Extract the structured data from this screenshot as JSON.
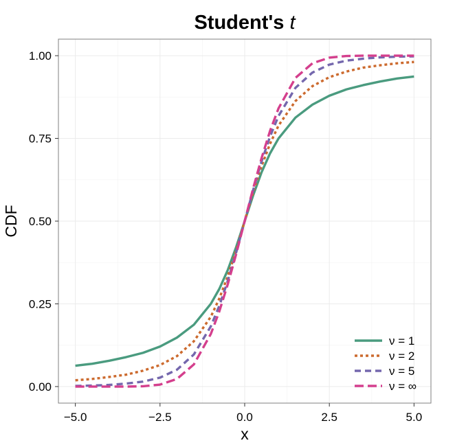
{
  "chart_data": {
    "type": "line",
    "title": "Student's",
    "title_italic": "t",
    "xlabel": "x",
    "ylabel": "CDF",
    "xlim": [
      -5.5,
      5.5
    ],
    "ylim": [
      -0.05,
      1.05
    ],
    "x_ticks": [
      -5.0,
      -2.5,
      0.0,
      2.5,
      5.0
    ],
    "x_tick_labels": [
      "−5.0",
      "−2.5",
      "0.0",
      "2.5",
      "5.0"
    ],
    "y_ticks": [
      0.0,
      0.25,
      0.5,
      0.75,
      1.0
    ],
    "y_tick_labels": [
      "0.00",
      "0.25",
      "0.50",
      "0.75",
      "1.00"
    ],
    "grid": true,
    "legend_position": "bottom-right",
    "x": [
      -5.0,
      -4.5,
      -4.0,
      -3.5,
      -3.0,
      -2.5,
      -2.0,
      -1.5,
      -1.0,
      -0.75,
      -0.5,
      -0.25,
      0.0,
      0.25,
      0.5,
      0.75,
      1.0,
      1.5,
      2.0,
      2.5,
      3.0,
      3.5,
      4.0,
      4.5,
      5.0
    ],
    "series": [
      {
        "name": "ν = 1",
        "color": "#4a9b7f",
        "dash": "solid",
        "values": [
          0.063,
          0.069,
          0.078,
          0.089,
          0.102,
          0.121,
          0.148,
          0.187,
          0.25,
          0.295,
          0.352,
          0.422,
          0.5,
          0.578,
          0.648,
          0.705,
          0.75,
          0.813,
          0.852,
          0.879,
          0.898,
          0.911,
          0.922,
          0.931,
          0.937
        ]
      },
      {
        "name": "ν = 2",
        "color": "#cc6a2e",
        "dash": "dotted",
        "values": [
          0.019,
          0.023,
          0.029,
          0.036,
          0.048,
          0.065,
          0.092,
          0.137,
          0.211,
          0.266,
          0.333,
          0.412,
          0.5,
          0.588,
          0.667,
          0.734,
          0.789,
          0.863,
          0.908,
          0.935,
          0.952,
          0.964,
          0.971,
          0.977,
          0.981
        ]
      },
      {
        "name": "ν = 5",
        "color": "#7467ad",
        "dash": "dashed",
        "values": [
          0.002,
          0.003,
          0.005,
          0.009,
          0.015,
          0.027,
          0.051,
          0.097,
          0.182,
          0.244,
          0.319,
          0.406,
          0.5,
          0.594,
          0.681,
          0.756,
          0.818,
          0.903,
          0.949,
          0.973,
          0.985,
          0.991,
          0.995,
          0.997,
          0.998
        ]
      },
      {
        "name": "ν = ∞",
        "color": "#d43f8d",
        "dash": "longdash",
        "values": [
          0.0,
          0.0,
          0.0,
          0.0,
          0.001,
          0.006,
          0.023,
          0.067,
          0.159,
          0.227,
          0.309,
          0.401,
          0.5,
          0.599,
          0.691,
          0.773,
          0.841,
          0.933,
          0.977,
          0.994,
          0.999,
          1.0,
          1.0,
          1.0,
          1.0
        ]
      }
    ]
  }
}
